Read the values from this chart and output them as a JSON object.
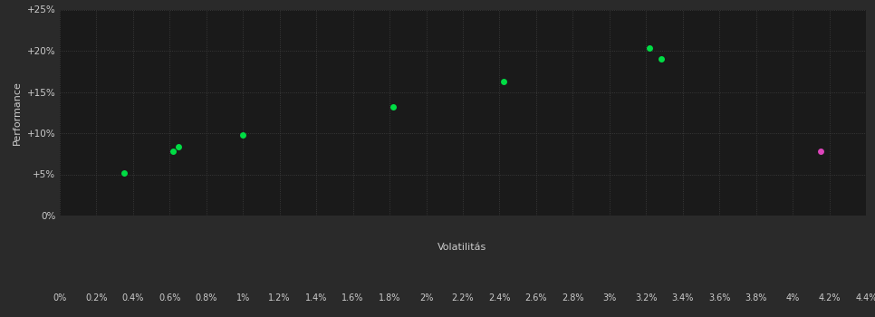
{
  "background_color": "#111111",
  "plot_bg_color": "#1a1a1a",
  "outer_bg_color": "#2a2a2a",
  "grid_color": "#404040",
  "text_color": "#cccccc",
  "green_points": [
    [
      0.35,
      5.2
    ],
    [
      0.62,
      7.8
    ],
    [
      0.65,
      8.4
    ],
    [
      1.0,
      9.8
    ],
    [
      1.82,
      13.2
    ],
    [
      2.42,
      16.3
    ],
    [
      3.22,
      20.3
    ],
    [
      3.28,
      19.0
    ]
  ],
  "magenta_points": [
    [
      4.15,
      7.8
    ]
  ],
  "green_color": "#00dd44",
  "magenta_color": "#dd44bb",
  "xlabel": "Volatilitás",
  "ylabel": "Performance",
  "xlim": [
    0.0,
    4.4
  ],
  "ylim": [
    0.0,
    25.0
  ],
  "xtick_values": [
    0.0,
    0.2,
    0.4,
    0.6,
    0.8,
    1.0,
    1.2,
    1.4,
    1.6,
    1.8,
    2.0,
    2.2,
    2.4,
    2.6,
    2.8,
    3.0,
    3.2,
    3.4,
    3.6,
    3.8,
    4.0,
    4.2,
    4.4
  ],
  "ytick_values": [
    0,
    5,
    10,
    15,
    20,
    25
  ],
  "ytick_labels": [
    "0%",
    "+5%",
    "+10%",
    "+15%",
    "+20%",
    "+25%"
  ],
  "marker_size": 5
}
